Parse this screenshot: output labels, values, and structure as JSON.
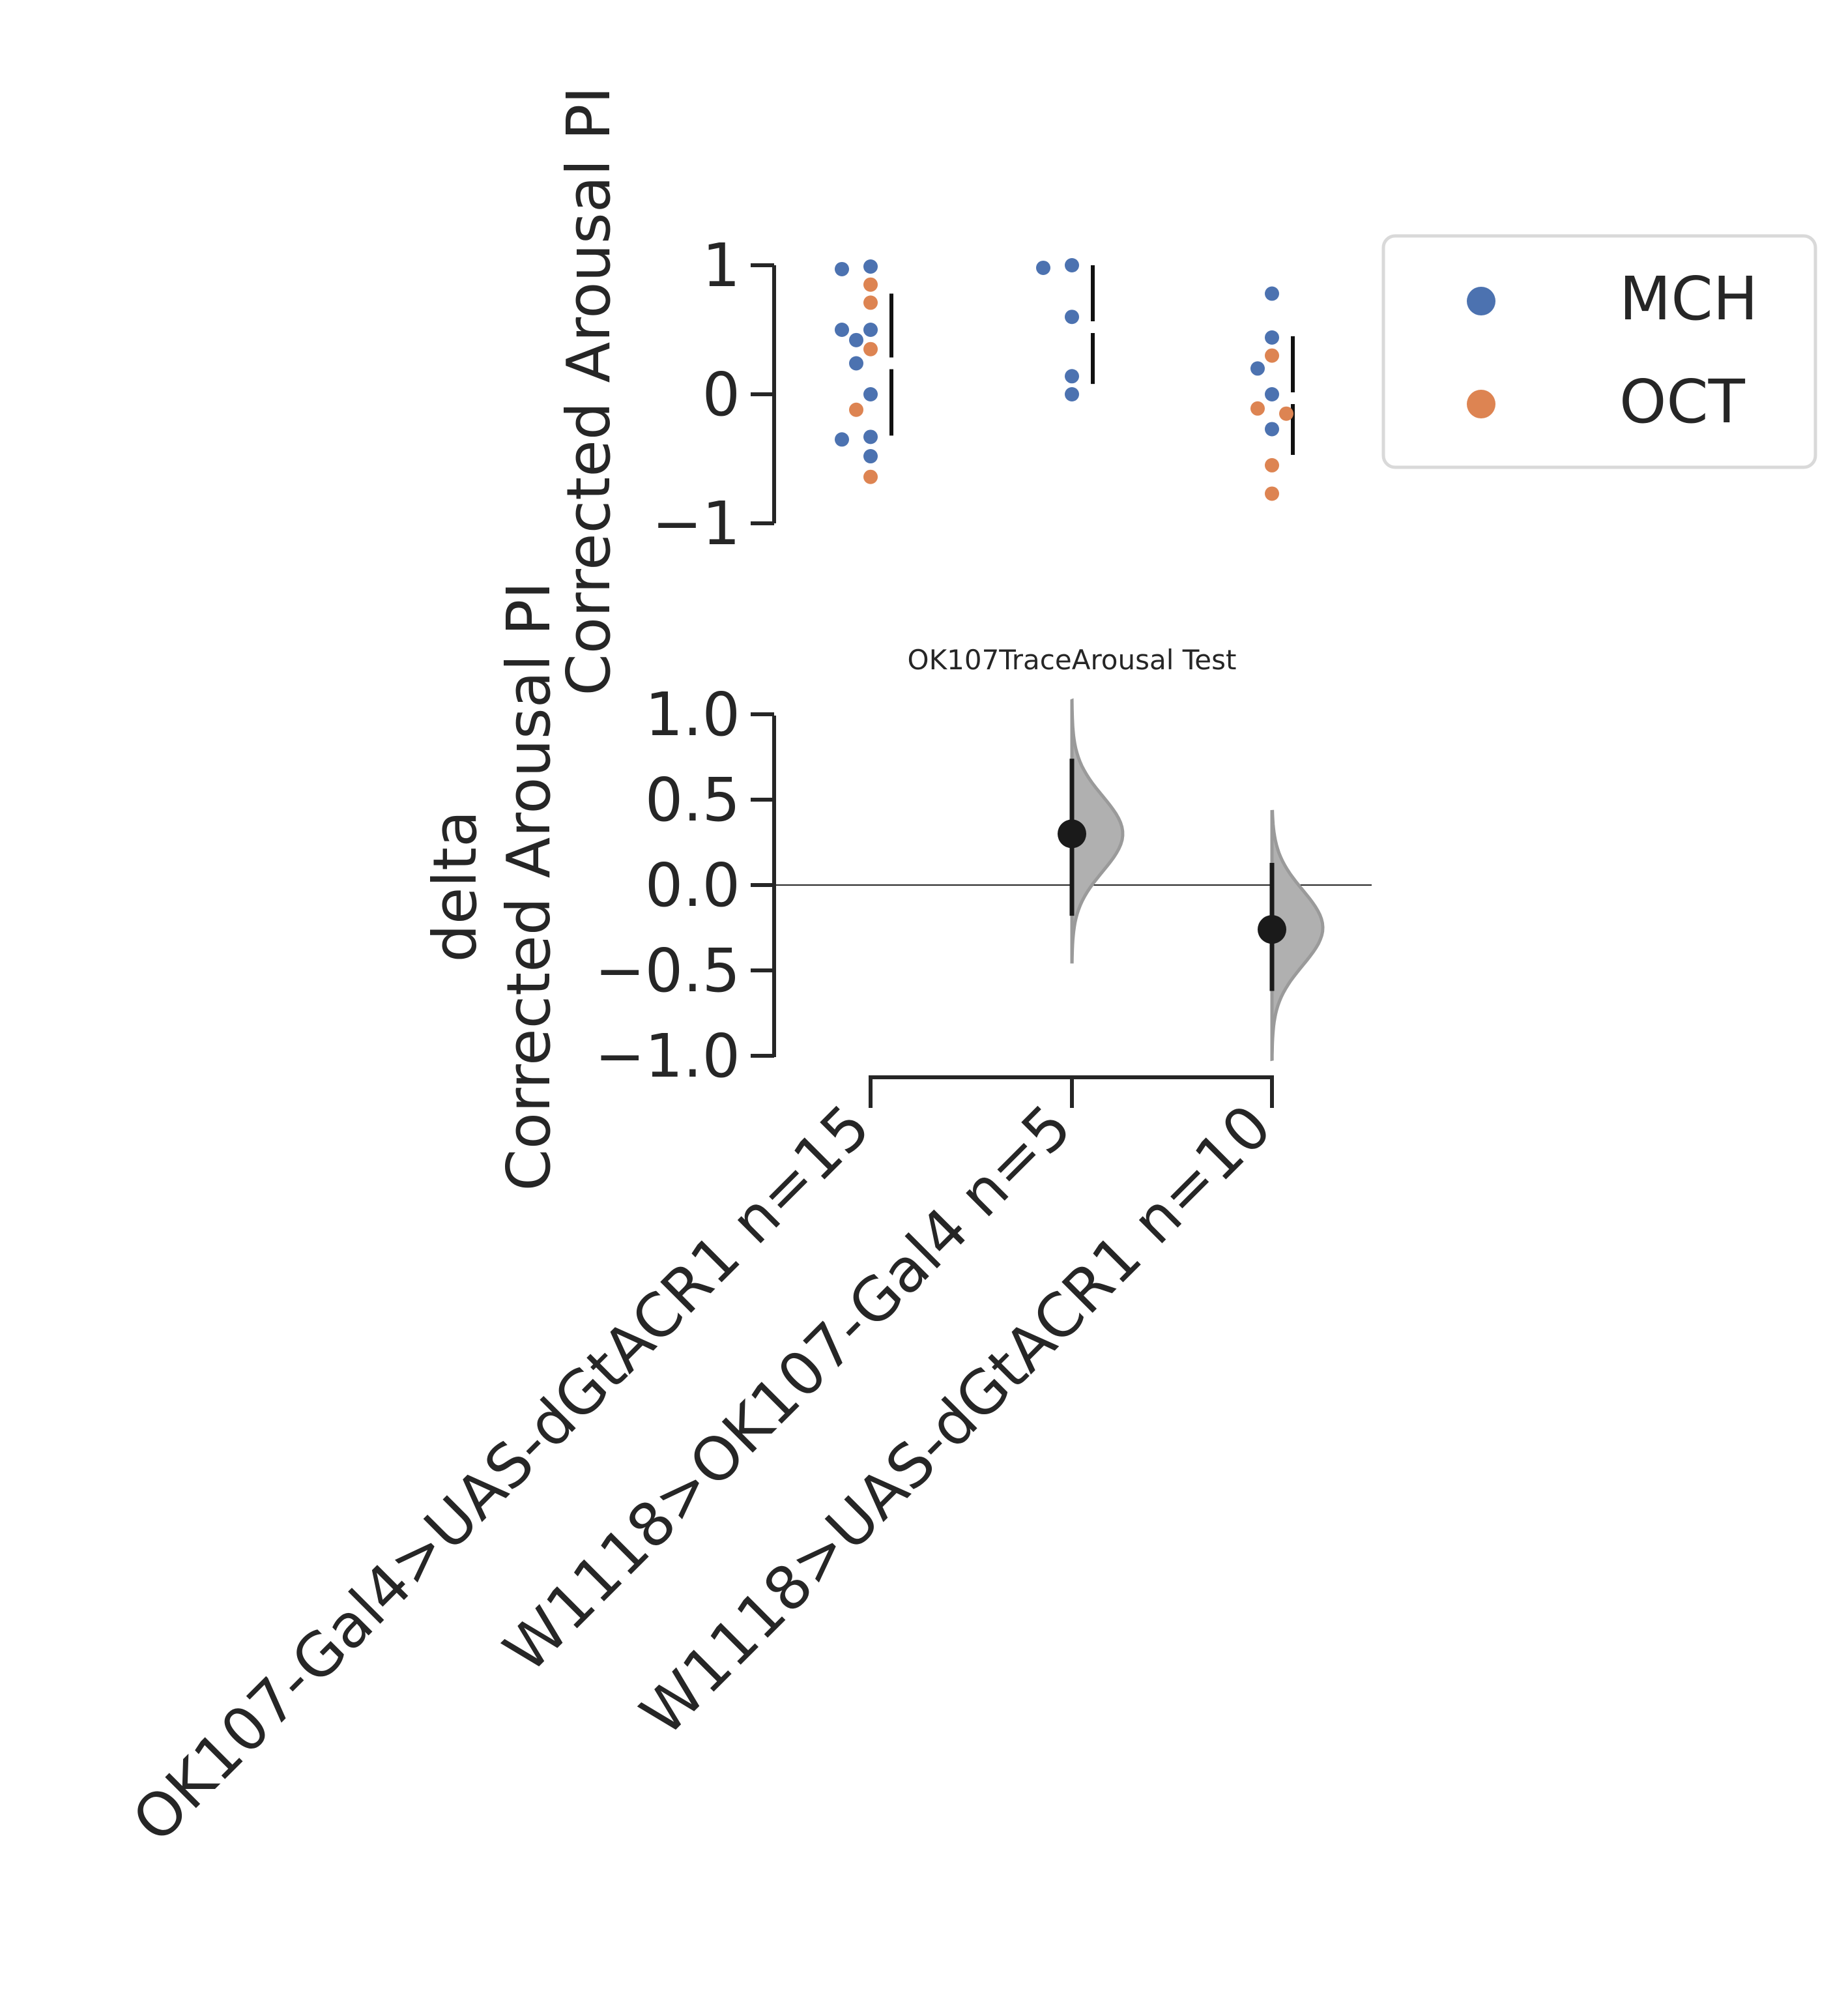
{
  "chart_data": [
    {
      "type": "scatter",
      "ylabel": "Corrected Arousal PI",
      "ylim": [
        -1,
        1
      ],
      "yticks": [
        -1,
        0,
        1
      ],
      "ytick_labels": [
        "−1",
        "0",
        "1"
      ],
      "categories": [
        "OK107-Gal4>UAS-dGtACR1 n=15",
        "W1118>OK107-Gal4 n=5",
        "W1118>UAS-dGtACR1 n=10"
      ],
      "series": [
        {
          "name": "MCH",
          "color": "#4c72b0",
          "points": [
            {
              "group": 0,
              "y": 0.99
            },
            {
              "group": 0,
              "y": 0.97
            },
            {
              "group": 0,
              "y": 0.5
            },
            {
              "group": 0,
              "y": 0.5
            },
            {
              "group": 0,
              "y": 0.42
            },
            {
              "group": 0,
              "y": 0.24
            },
            {
              "group": 0,
              "y": 0.0
            },
            {
              "group": 0,
              "y": -0.33
            },
            {
              "group": 0,
              "y": -0.35
            },
            {
              "group": 0,
              "y": -0.48
            },
            {
              "group": 1,
              "y": 1.0
            },
            {
              "group": 1,
              "y": 0.98
            },
            {
              "group": 1,
              "y": 0.6
            },
            {
              "group": 1,
              "y": 0.14
            },
            {
              "group": 1,
              "y": 0.0
            },
            {
              "group": 2,
              "y": 0.78
            },
            {
              "group": 2,
              "y": 0.44
            },
            {
              "group": 2,
              "y": 0.2
            },
            {
              "group": 2,
              "y": 0.0
            },
            {
              "group": 2,
              "y": -0.27
            }
          ]
        },
        {
          "name": "OCT",
          "color": "#dd8452",
          "points": [
            {
              "group": 0,
              "y": 0.85
            },
            {
              "group": 0,
              "y": 0.71
            },
            {
              "group": 0,
              "y": 0.35
            },
            {
              "group": 0,
              "y": -0.12
            },
            {
              "group": 0,
              "y": -0.64
            },
            {
              "group": 2,
              "y": 0.3
            },
            {
              "group": 2,
              "y": -0.11
            },
            {
              "group": 2,
              "y": -0.15
            },
            {
              "group": 2,
              "y": -0.55
            },
            {
              "group": 2,
              "y": -0.77
            }
          ]
        }
      ],
      "gapped_bars": [
        {
          "group": 0,
          "low": -0.32,
          "mean": 0.24,
          "high": 0.78
        },
        {
          "group": 1,
          "low": 0.08,
          "mean": 0.52,
          "high": 1.0
        },
        {
          "group": 2,
          "low": -0.47,
          "mean": -0.03,
          "high": 0.45
        }
      ],
      "legend": {
        "position": "right",
        "entries": [
          "MCH",
          "OCT"
        ]
      }
    },
    {
      "type": "scatter",
      "title": "OK107TraceArousal Test",
      "ylabel_lines": [
        "delta",
        "Corrected Arousal PI"
      ],
      "ylim": [
        -1.0,
        1.0
      ],
      "yticks": [
        -1.0,
        -0.5,
        0.0,
        0.5,
        1.0
      ],
      "ytick_labels": [
        "−1.0",
        "−0.5",
        "0.0",
        "0.5",
        "1.0"
      ],
      "categories": [
        "OK107-Gal4>UAS-dGtACR1 n=15",
        "W1118>OK107-Gal4 n=5",
        "W1118>UAS-dGtACR1 n=10"
      ],
      "effect_sizes": [
        {
          "group": 1,
          "mean": 0.3,
          "ci_low": -0.18,
          "ci_high": 0.74,
          "dist_min": -0.45,
          "dist_max": 1.08,
          "dist_peak": 0.3
        },
        {
          "group": 2,
          "mean": -0.26,
          "ci_low": -0.62,
          "ci_high": 0.13,
          "dist_min": -1.02,
          "dist_max": 0.43,
          "dist_peak": -0.25
        }
      ],
      "reference_line_y": 0.0,
      "colors": {
        "effect": "#1a1a1a",
        "distribution": "#b0b0b0"
      }
    }
  ]
}
